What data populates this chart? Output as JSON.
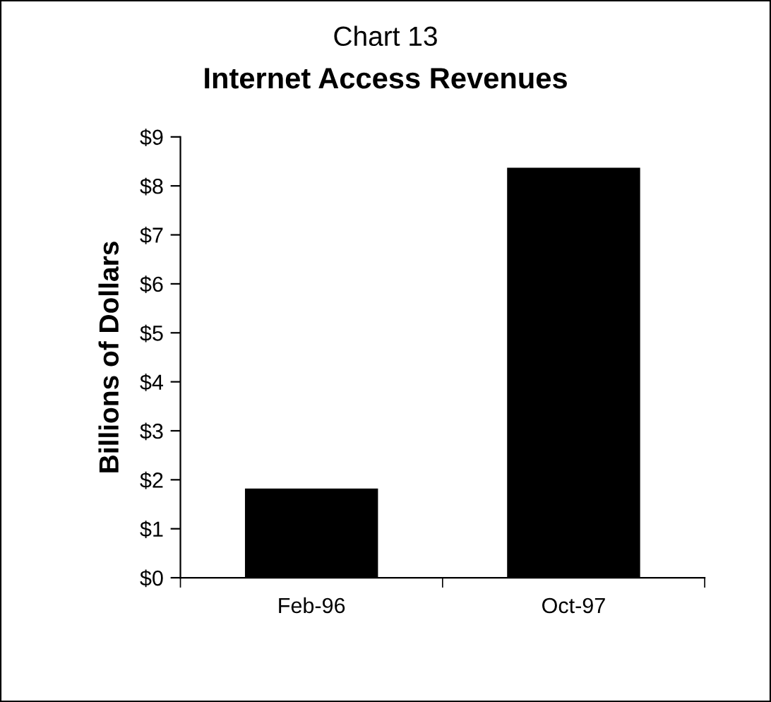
{
  "chart_data": {
    "type": "bar",
    "title": "Chart 13",
    "subtitle": "Internet Access Revenues",
    "ylabel": "Billions of Dollars",
    "categories": [
      "Feb-96",
      "Oct-97"
    ],
    "values": [
      1.8,
      8.35
    ],
    "color": "#000000",
    "ylim": [
      0,
      9
    ],
    "yticks": [
      {
        "value": 0,
        "label": "$0"
      },
      {
        "value": 1,
        "label": "$1"
      },
      {
        "value": 2,
        "label": "$2"
      },
      {
        "value": 3,
        "label": "$3"
      },
      {
        "value": 4,
        "label": "$4"
      },
      {
        "value": 5,
        "label": "$5"
      },
      {
        "value": 6,
        "label": "$6"
      },
      {
        "value": 7,
        "label": "$7"
      },
      {
        "value": 8,
        "label": "$8"
      },
      {
        "value": 9,
        "label": "$9"
      }
    ],
    "grid": false,
    "legend": false
  }
}
